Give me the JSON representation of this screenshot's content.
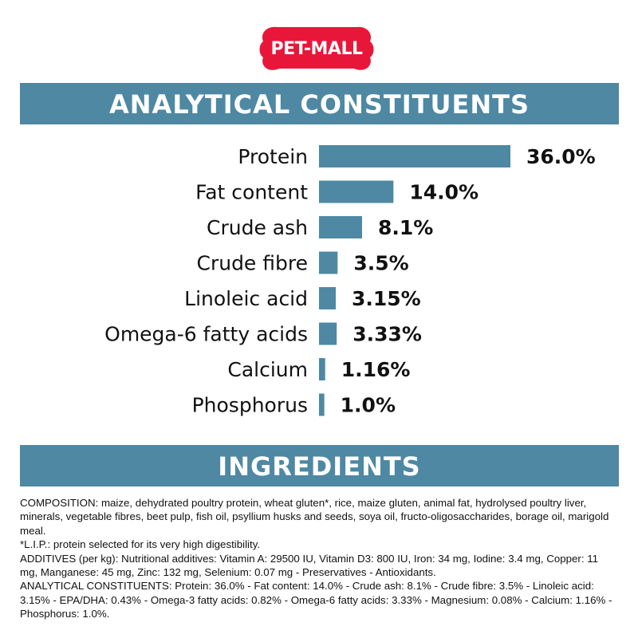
{
  "brand": {
    "logo_text": "PET-MALL",
    "logo_color": "#e8173a"
  },
  "sections": {
    "analytical_title": "ANALYTICAL CONSTITUENTS",
    "ingredients_title": "INGREDIENTS"
  },
  "colors": {
    "banner": "#4e88a3",
    "bar": "#4e88a3"
  },
  "chart_data": {
    "type": "bar",
    "orientation": "horizontal",
    "categories": [
      "Protein",
      "Fat content",
      "Crude ash",
      "Crude fibre",
      "Linoleic acid",
      "Omega-6 fatty acids",
      "Calcium",
      "Phosphorus"
    ],
    "values": [
      36.0,
      14.0,
      8.1,
      3.5,
      3.15,
      3.33,
      1.16,
      1.0
    ],
    "value_labels": [
      "36.0%",
      "14.0%",
      "8.1%",
      "3.5%",
      "3.15%",
      "3.33%",
      "1.16%",
      "1.0%"
    ],
    "xlim": [
      0,
      36.0
    ],
    "grid": false,
    "legend": "none"
  },
  "ingredients": {
    "composition": "COMPOSITION: maize, dehydrated poultry protein, wheat gluten*, rice, maize gluten, animal fat, hydrolysed poultry liver, minerals, vegetable fibres, beet pulp, fish oil, psyllium husks and seeds, soya oil, fructo-oligosaccharides, borage oil, marigold meal.",
    "footnote": "*L.I.P.: protein selected for its very high digestibility.",
    "additives": "ADDITIVES (per kg): Nutritional additives: Vitamin A: 29500 IU, Vitamin D3: 800 IU, Iron: 34 mg, Iodine: 3.4 mg, Copper: 11 mg, Manganese: 45 mg, Zinc: 132 mg, Selenium: 0.07 mg - Preservatives - Antioxidants.",
    "analytical": "ANALYTICAL CONSTITUENTS: Protein: 36.0% - Fat content: 14.0% - Crude ash: 8.1% - Crude fibre: 3.5% - Linoleic acid: 3.15% - EPA/DHA: 0.43% - Omega-3 fatty acids: 0.82% - Omega-6 fatty acids: 3.33% - Magnesium: 0.08% - Calcium: 1.16% - Phosphorus: 1.0%."
  }
}
